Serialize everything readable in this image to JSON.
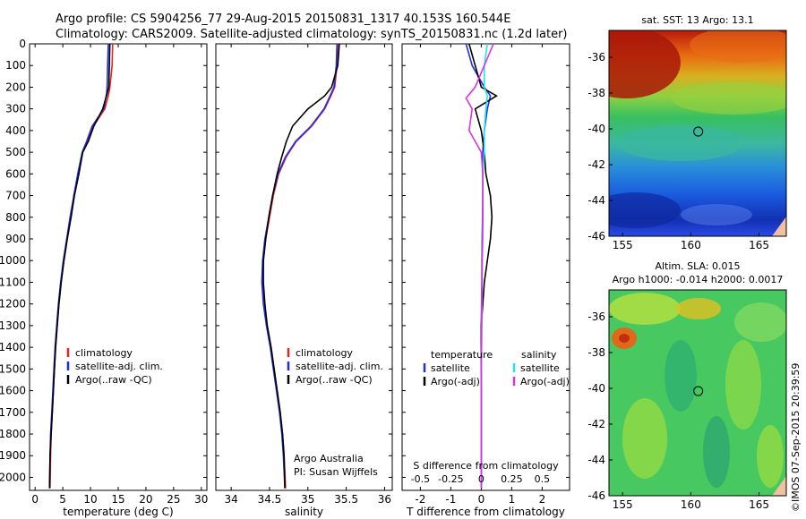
{
  "header": {
    "line1": "Argo profile: CS 5904256_77 29-Aug-2015 20150831_1317 40.153S 160.544E",
    "line2": "Climatology: CARS2009. Satellite-adjusted climatology: synTS_20150831.nc (1.2d later)"
  },
  "credit": {
    "institution": "Argo Australia",
    "pi": "PI: Susan Wijffels"
  },
  "timestamp": "©IMOS 07-Sep-2015 20:39:59",
  "colors": {
    "climatology": "#e8241e",
    "satellite": "#1f2fe6",
    "argo": "#000000",
    "sat_diff_s": "#20e6ea",
    "argo_diff_s": "#e030e0"
  },
  "chart_data": [
    {
      "id": "temperature",
      "type": "line",
      "xlabel": "temperature (deg C)",
      "ylabel": "",
      "xlim": [
        -1,
        31
      ],
      "ylim": [
        2060,
        0
      ],
      "xticks": [
        "0",
        "5",
        "10",
        "15",
        "20",
        "25",
        "30"
      ],
      "xtick_values": [
        0,
        5,
        10,
        15,
        20,
        25,
        30
      ],
      "yticks": [
        "0",
        "100",
        "200",
        "300",
        "400",
        "500",
        "600",
        "700",
        "800",
        "900",
        "1000",
        "1100",
        "1200",
        "1300",
        "1400",
        "1500",
        "1600",
        "1700",
        "1800",
        "1900",
        "2000"
      ],
      "ytick_values": [
        0,
        100,
        200,
        300,
        400,
        500,
        600,
        700,
        800,
        900,
        1000,
        1100,
        1200,
        1300,
        1400,
        1500,
        1600,
        1700,
        1800,
        1900,
        2000
      ],
      "legend": [
        "climatology",
        "satellite-adj. clim.",
        "Argo(..raw -QC)"
      ],
      "series": [
        {
          "name": "climatology",
          "color": "#e8241e",
          "x": [
            14.0,
            13.9,
            13.5,
            13.3,
            12.6,
            10.5,
            9.5,
            8.6,
            7.8,
            7.0,
            6.4,
            5.8,
            5.2,
            4.7,
            4.3,
            4.0,
            3.7,
            3.5,
            3.3,
            3.1,
            2.9,
            2.8,
            2.7
          ],
          "y": [
            0,
            100,
            200,
            230,
            300,
            380,
            450,
            500,
            600,
            700,
            800,
            900,
            1000,
            1100,
            1200,
            1300,
            1400,
            1500,
            1600,
            1700,
            1800,
            1900,
            2050
          ]
        },
        {
          "name": "satellite-adj. clim.",
          "color": "#1f2fe6",
          "x": [
            13.2,
            13.1,
            13.0,
            12.9,
            12.4,
            10.3,
            9.3,
            8.5,
            7.7,
            7.0,
            6.3,
            5.7,
            5.1,
            4.6,
            4.2,
            3.9,
            3.6,
            3.4,
            3.2,
            3.0,
            2.8,
            2.7,
            2.6
          ],
          "y": [
            0,
            100,
            200,
            230,
            300,
            380,
            450,
            500,
            600,
            700,
            800,
            900,
            1000,
            1100,
            1200,
            1300,
            1400,
            1500,
            1600,
            1700,
            1800,
            1900,
            2050
          ]
        },
        {
          "name": "Argo(..raw -QC)",
          "color": "#000000",
          "x": [
            13.5,
            13.4,
            13.3,
            13.0,
            12.2,
            10.6,
            9.6,
            8.6,
            7.9,
            7.1,
            6.5,
            5.8,
            5.2,
            4.7,
            4.3,
            4.0,
            3.7,
            3.5,
            3.3,
            3.1,
            2.9,
            2.7,
            2.6
          ],
          "y": [
            0,
            100,
            200,
            230,
            300,
            380,
            450,
            500,
            600,
            700,
            800,
            900,
            1000,
            1100,
            1200,
            1300,
            1400,
            1500,
            1600,
            1700,
            1800,
            1900,
            2050
          ]
        }
      ]
    },
    {
      "id": "salinity",
      "type": "line",
      "xlabel": "salinity",
      "ylabel": "",
      "xlim": [
        33.8,
        36.1
      ],
      "ylim": [
        2060,
        0
      ],
      "xticks": [
        "34",
        "34.5",
        "35",
        "35.5",
        "36"
      ],
      "xtick_values": [
        34,
        34.5,
        35,
        35.5,
        36
      ],
      "legend": [
        "climatology",
        "satellite-adj. clim.",
        "Argo(..raw -QC)"
      ],
      "series": [
        {
          "name": "climatology",
          "color": "#e8241e",
          "x": [
            35.39,
            35.38,
            35.35,
            35.3,
            35.22,
            35.05,
            34.85,
            34.72,
            34.62,
            34.55,
            34.5,
            34.45,
            34.42,
            34.41,
            34.43,
            34.47,
            34.52,
            34.56,
            34.6,
            34.64,
            34.67,
            34.69,
            34.71
          ],
          "y": [
            0,
            100,
            200,
            240,
            300,
            380,
            450,
            520,
            600,
            700,
            800,
            900,
            1000,
            1100,
            1200,
            1300,
            1400,
            1500,
            1600,
            1700,
            1800,
            1900,
            2050
          ]
        },
        {
          "name": "satellite-adj. clim.",
          "color": "#1f2fe6",
          "x": [
            35.38,
            35.37,
            35.34,
            35.29,
            35.21,
            35.04,
            34.84,
            34.71,
            34.61,
            34.54,
            34.49,
            34.44,
            34.41,
            34.4,
            34.42,
            34.46,
            34.51,
            34.55,
            34.59,
            34.63,
            34.66,
            34.68,
            34.7
          ],
          "y": [
            0,
            100,
            200,
            240,
            300,
            380,
            450,
            520,
            600,
            700,
            800,
            900,
            1000,
            1100,
            1200,
            1300,
            1400,
            1500,
            1600,
            1700,
            1800,
            1900,
            2050
          ]
        },
        {
          "name": "Argo(..raw -QC)",
          "color": "#000000",
          "x": [
            35.41,
            35.39,
            35.31,
            35.22,
            35.0,
            34.8,
            34.72,
            34.66,
            34.6,
            34.54,
            34.49,
            34.45,
            34.42,
            34.42,
            34.44,
            34.47,
            34.52,
            34.56,
            34.6,
            34.64,
            34.67,
            34.69,
            34.7
          ],
          "y": [
            0,
            100,
            200,
            240,
            300,
            380,
            450,
            520,
            600,
            700,
            800,
            900,
            1000,
            1100,
            1200,
            1300,
            1400,
            1500,
            1600,
            1700,
            1800,
            1900,
            2050
          ]
        }
      ]
    },
    {
      "id": "differences",
      "type": "line",
      "xlabel": "T difference from climatology",
      "top_xlabel": "S difference from climatology",
      "xlim": [
        -2.6,
        2.9
      ],
      "ylim": [
        2060,
        0
      ],
      "xticks": [
        "-2",
        "-1",
        "0",
        "1",
        "2"
      ],
      "xtick_values": [
        -2,
        -1,
        0,
        1,
        2
      ],
      "sticks": [
        "-0.5",
        "-0.25",
        "0",
        "0.25",
        "0.5"
      ],
      "stick_values": [
        -2,
        -1,
        0,
        1,
        2
      ],
      "legend_left_title": "temperature",
      "legend_right_title": "salinity",
      "legend": [
        "satellite",
        "Argo(-adj)",
        "satellite",
        "Argo(-adj)"
      ],
      "series": [
        {
          "name": "satellite",
          "color": "#1f2fe6",
          "x": [
            -0.5,
            -0.3,
            0.1,
            0.3,
            0.2,
            0.1,
            0.05,
            0.05,
            0.05,
            0.04,
            0.03,
            0.02,
            0.02,
            0.01,
            0.0,
            0.0,
            0.0,
            0.0,
            0.0,
            0.0,
            0.0,
            0.0
          ],
          "y": [
            0,
            100,
            200,
            240,
            300,
            400,
            500,
            600,
            700,
            800,
            900,
            1000,
            1100,
            1200,
            1300,
            1400,
            1500,
            1600,
            1700,
            1800,
            1900,
            2050
          ]
        },
        {
          "name": "Argo(-adj)",
          "color": "#000000",
          "x": [
            -0.4,
            -0.2,
            0.0,
            0.5,
            -0.2,
            0.0,
            0.1,
            0.15,
            0.3,
            0.35,
            0.3,
            0.2,
            0.1,
            0.05,
            0.0,
            0.0,
            0.0,
            0.0,
            0.0,
            0.0,
            0.0,
            0.0
          ],
          "y": [
            0,
            100,
            200,
            240,
            300,
            400,
            500,
            600,
            700,
            800,
            900,
            1000,
            1100,
            1200,
            1300,
            1400,
            1500,
            1600,
            1700,
            1800,
            1900,
            2050
          ]
        },
        {
          "name": "satellite",
          "color": "#20e6ea",
          "x": [
            0.2,
            0.1,
            0.1,
            0.2,
            0.15,
            0.1,
            0.1,
            0.05,
            0.05,
            0.05,
            0.05,
            0.03,
            0.03,
            0.02,
            0.02,
            0.01,
            0.01,
            0.0,
            0.0,
            0.0,
            0.0,
            0.0
          ],
          "y": [
            0,
            100,
            200,
            240,
            300,
            400,
            500,
            600,
            700,
            800,
            900,
            1000,
            1100,
            1200,
            1300,
            1400,
            1500,
            1600,
            1700,
            1800,
            1900,
            2050
          ]
        },
        {
          "name": "Argo(-adj)",
          "color": "#e030e0",
          "x": [
            0.4,
            0.1,
            -0.2,
            -0.5,
            -0.3,
            -0.4,
            0.0,
            0.05,
            0.05,
            0.05,
            0.04,
            0.03,
            0.02,
            0.02,
            0.01,
            0.01,
            0.0,
            0.0,
            0.0,
            0.0,
            0.0,
            0.0
          ],
          "y": [
            0,
            100,
            200,
            250,
            300,
            400,
            500,
            600,
            700,
            800,
            900,
            1000,
            1100,
            1200,
            1300,
            1400,
            1500,
            1600,
            1700,
            1800,
            1900,
            2050
          ]
        }
      ]
    },
    {
      "id": "sst_map",
      "type": "heatmap",
      "title": "sat. SST: 13 Argo: 13.1",
      "xlim": [
        154,
        167
      ],
      "ylim": [
        -46,
        -34.5
      ],
      "xticks": [
        "155",
        "160",
        "165"
      ],
      "xtick_values": [
        155,
        160,
        165
      ],
      "yticks": [
        "-36",
        "-38",
        "-40",
        "-42",
        "-44",
        "-46"
      ],
      "ytick_values": [
        -36,
        -38,
        -40,
        -42,
        -44,
        -46
      ],
      "marker": {
        "lon": 160.544,
        "lat": -40.153
      }
    },
    {
      "id": "sla_map",
      "type": "heatmap",
      "title": "Altim. SLA: 0.015",
      "subtitle": "Argo h1000: -0.014 h2000: 0.0017",
      "xlim": [
        154,
        167
      ],
      "ylim": [
        -46,
        -34.5
      ],
      "xticks": [
        "155",
        "160",
        "165"
      ],
      "xtick_values": [
        155,
        160,
        165
      ],
      "yticks": [
        "-36",
        "-38",
        "-40",
        "-42",
        "-44",
        "-46"
      ],
      "ytick_values": [
        -36,
        -38,
        -40,
        -42,
        -44,
        -46
      ],
      "marker": {
        "lon": 160.544,
        "lat": -40.153
      }
    }
  ]
}
